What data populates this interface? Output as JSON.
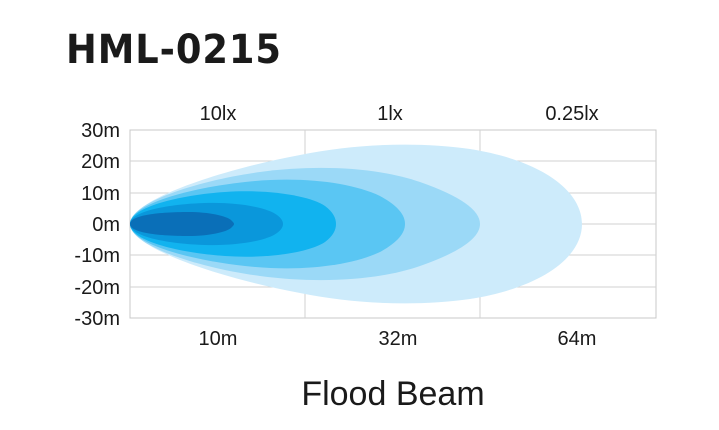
{
  "title": "HML-0215",
  "caption": "Flood Beam",
  "lux_labels": [
    "10lx",
    "1lx",
    "0.25lx"
  ],
  "y_ticks": [
    "30m",
    "20m",
    "10m",
    "0m",
    "-10m",
    "-20m",
    "-30m"
  ],
  "x_ticks": [
    "10m",
    "32m",
    "64m"
  ],
  "chart_data": {
    "type": "area",
    "x_ticks": [
      "10m",
      "32m",
      "64m"
    ],
    "y_ticks": [
      "30m",
      "20m",
      "10m",
      "0m",
      "-10m",
      "-20m",
      "-30m"
    ],
    "ylim": [
      -30,
      30
    ],
    "grid": true,
    "lux_levels": [
      "10lx",
      "1lx",
      "0.25lx"
    ],
    "colors": [
      "#0a6fb8",
      "#0a97db",
      "#11b3ef",
      "#5ac6f3",
      "#9bd9f7",
      "#cdebfb"
    ]
  }
}
